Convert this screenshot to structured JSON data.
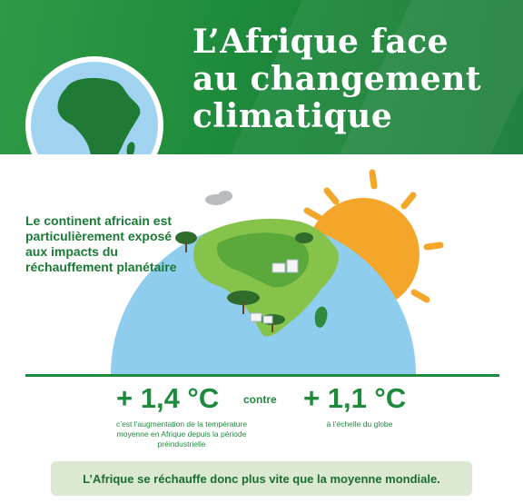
{
  "header": {
    "title_lines": [
      "L’Afrique face",
      "au changement",
      "climatique"
    ]
  },
  "intro": {
    "text": "Le continent africain est particulièrement exposé aux impacts du réchauffement planétaire"
  },
  "stats": {
    "africa": {
      "value": "+ 1,4 °C",
      "caption": "c’est l’augmentation de la température moyenne en Afrique depuis la période préindustrielle"
    },
    "connector": "contre",
    "global": {
      "value": "+ 1,1 °C",
      "caption": "à l’échelle du globe"
    }
  },
  "banner": {
    "text": "L’Afrique se réchauffe donc plus vite que la moyenne mondiale."
  },
  "colors": {
    "brand_green": "#1e8a3c",
    "ocean_blue": "#8ecdee",
    "sun_orange": "#f3a62a",
    "banner_bg": "#dbe8d2"
  },
  "icons": [
    "globe-africa-icon",
    "sun-icon",
    "earth-illustration"
  ]
}
